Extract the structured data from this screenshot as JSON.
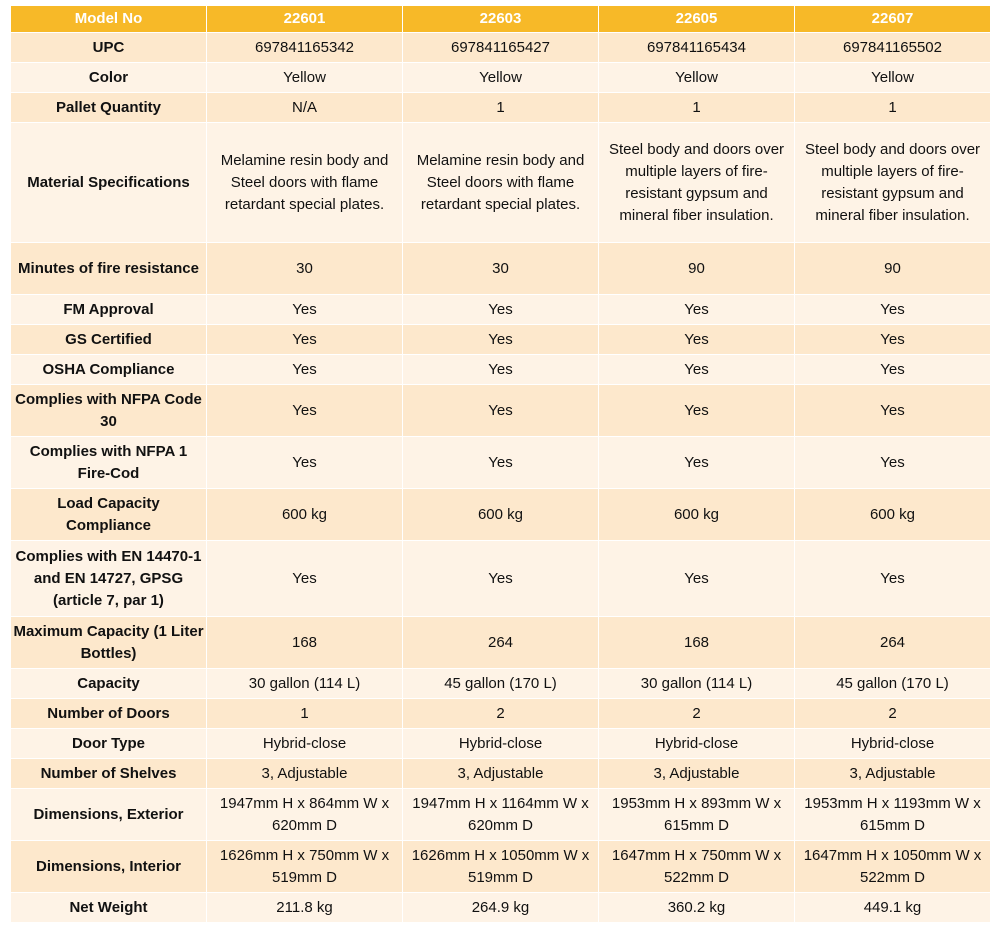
{
  "header": {
    "label": "Model No",
    "models": [
      "22601",
      "22603",
      "22605",
      "22607"
    ]
  },
  "rows": [
    {
      "label": "UPC",
      "values": [
        "697841165342",
        "697841165427",
        "697841165434",
        "697841165502"
      ]
    },
    {
      "label": "Color",
      "values": [
        "Yellow",
        "Yellow",
        "Yellow",
        "Yellow"
      ]
    },
    {
      "label": "Pallet Quantity",
      "values": [
        "N/A",
        "1",
        "1",
        "1"
      ]
    },
    {
      "label": "Material Specifications",
      "values": [
        "Melamine resin body and Steel doors with flame retardant special plates.",
        "Melamine resin body and Steel doors with flame retardant special plates.",
        "Steel body and doors over multiple layers of fire-resistant gypsum and mineral fiber insulation.",
        "Steel body and doors over multiple layers of fire-resistant gypsum and mineral fiber insulation."
      ]
    },
    {
      "label": "Minutes of fire resistance",
      "values": [
        "30",
        "30",
        "90",
        "90"
      ]
    },
    {
      "label": "FM Approval",
      "values": [
        "Yes",
        "Yes",
        "Yes",
        "Yes"
      ]
    },
    {
      "label": "GS Certified",
      "values": [
        "Yes",
        "Yes",
        "Yes",
        "Yes"
      ]
    },
    {
      "label": "OSHA Compliance",
      "values": [
        "Yes",
        "Yes",
        "Yes",
        "Yes"
      ]
    },
    {
      "label": "Complies with NFPA Code 30",
      "values": [
        "Yes",
        "Yes",
        "Yes",
        "Yes"
      ]
    },
    {
      "label": "Complies with NFPA 1 Fire-Cod",
      "values": [
        "Yes",
        "Yes",
        "Yes",
        "Yes"
      ]
    },
    {
      "label": "Load Capacity Compliance",
      "values": [
        "600 kg",
        "600 kg",
        "600 kg",
        "600 kg"
      ]
    },
    {
      "label": "Complies with EN 14470-1 and EN 14727, GPSG (article 7, par 1)",
      "values": [
        "Yes",
        "Yes",
        "Yes",
        "Yes"
      ]
    },
    {
      "label": "Maximum Capacity (1 Liter Bottles)",
      "values": [
        "168",
        "264",
        "168",
        "264"
      ]
    },
    {
      "label": "Capacity",
      "values": [
        "30 gallon (114 L)",
        "45 gallon (170 L)",
        "30 gallon (114 L)",
        "45 gallon (170 L)"
      ]
    },
    {
      "label": "Number of Doors",
      "values": [
        "1",
        "2",
        "2",
        "2"
      ]
    },
    {
      "label": "Door Type",
      "values": [
        "Hybrid-close",
        "Hybrid-close",
        "Hybrid-close",
        "Hybrid-close"
      ]
    },
    {
      "label": "Number of Shelves",
      "values": [
        "3, Adjustable",
        "3, Adjustable",
        "3, Adjustable",
        "3, Adjustable"
      ]
    },
    {
      "label": "Dimensions, Exterior",
      "values": [
        "1947mm H x 864mm W x 620mm D",
        "1947mm H x 1164mm W x 620mm D",
        "1953mm H x 893mm W x 615mm D",
        "1953mm H x 1193mm W x 615mm D"
      ]
    },
    {
      "label": "Dimensions, Interior",
      "values": [
        "1626mm H x 750mm W x 519mm D",
        "1626mm H x 1050mm W x 519mm D",
        "1647mm H x 750mm W x 522mm D",
        "1647mm H x 1050mm W x 522mm D"
      ]
    },
    {
      "label": "Net Weight",
      "values": [
        "211.8 kg",
        "264.9 kg",
        "360.2 kg",
        "449.1 kg"
      ]
    }
  ],
  "colors": {
    "header_bg": "#f7b928",
    "header_text": "#ffffff",
    "row_dark": "#fde8cc",
    "row_light": "#fef3e6"
  }
}
